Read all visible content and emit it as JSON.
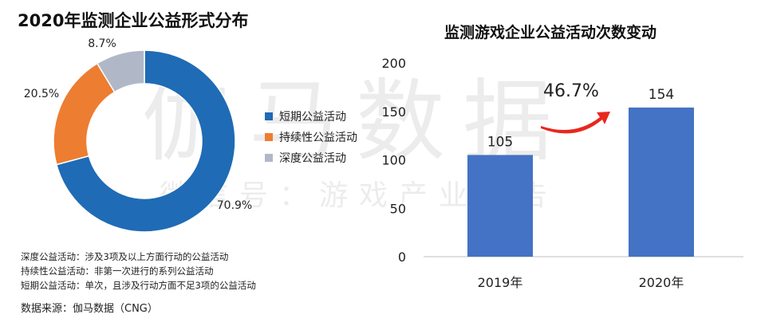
{
  "watermark": {
    "main": "伽马数据",
    "sub": "微信号：游戏产业报告"
  },
  "left": {
    "title": "2020年监测企业公益形式分布",
    "notes": [
      "深度公益活动：涉及3项及以上方面行动的公益活动",
      "持续性公益活动：非第一次进行的系列公益活动",
      "短期公益活动：单次，且涉及行动方面不足3项的公益活动"
    ],
    "source": "数据来源：伽马数据（CNG）"
  },
  "right": {
    "title": "监测游戏企业公益活动次数变动",
    "growth_label": "46.7%"
  },
  "colors": {
    "blue": "#1f6bb5",
    "orange": "#ed7d31",
    "gray": "#b0b8c8",
    "bar": "#4472c4",
    "arrow": "#e8281e"
  },
  "chart_data": [
    {
      "type": "pie",
      "title": "2020年监测企业公益形式分布",
      "donut": true,
      "legend": "right",
      "slices": [
        {
          "name": "短期公益活动",
          "value": 70.9,
          "label": "70.9%",
          "color": "#1f6bb5"
        },
        {
          "name": "持续性公益活动",
          "value": 20.5,
          "label": "20.5%",
          "color": "#ed7d31"
        },
        {
          "name": "深度公益活动",
          "value": 8.7,
          "label": "8.7%",
          "color": "#b0b8c8"
        }
      ]
    },
    {
      "type": "bar",
      "title": "监测游戏企业公益活动次数变动",
      "categories": [
        "2019年",
        "2020年"
      ],
      "values": [
        105,
        154
      ],
      "ylim": [
        0,
        200
      ],
      "yticks": [
        "0",
        "50",
        "100",
        "150",
        "200"
      ],
      "grid": false,
      "annotation": "46.7%",
      "color": "#4472c4"
    }
  ]
}
